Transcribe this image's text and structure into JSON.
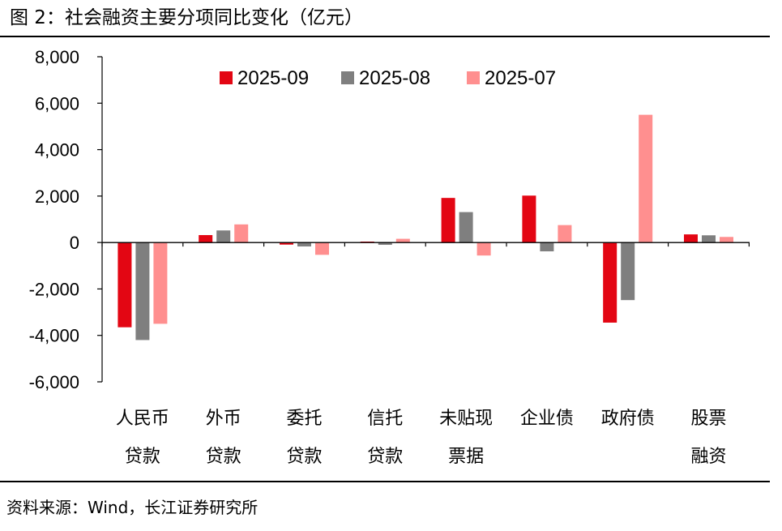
{
  "header": {
    "title": "图 2：社会融资主要分项同比变化（亿元）"
  },
  "footer": {
    "source": "资料来源：Wind，长江证券研究所"
  },
  "colors": {
    "s2025_09": "#e30613",
    "s2025_08": "#7f7f7f",
    "s2025_07": "#ff8f8f"
  },
  "chart_data": {
    "type": "bar",
    "title": "社会融资主要分项同比变化（亿元）",
    "xlabel": "",
    "ylabel": "",
    "ylim": [
      -6000,
      8000
    ],
    "yticks": [
      8000,
      6000,
      4000,
      2000,
      0,
      -2000,
      -4000,
      -6000
    ],
    "ytick_labels": [
      "8,000",
      "6,000",
      "4,000",
      "2,000",
      "0",
      "-2,000",
      "-4,000",
      "-6,000"
    ],
    "categories": [
      [
        "人民币",
        "贷款"
      ],
      [
        "外币",
        "贷款"
      ],
      [
        "委托",
        "贷款"
      ],
      [
        "信托",
        "贷款"
      ],
      [
        "未贴现",
        "票据"
      ],
      [
        "企业债"
      ],
      [
        "政府债"
      ],
      [
        "股票",
        "融资"
      ]
    ],
    "legend_position": "top",
    "series": [
      {
        "name": "2025-09",
        "color": "#e30613",
        "values": [
          -3650,
          320,
          -90,
          40,
          1920,
          2020,
          -3450,
          350
        ]
      },
      {
        "name": "2025-08",
        "color": "#7f7f7f",
        "values": [
          -4200,
          520,
          -170,
          -100,
          1310,
          -380,
          -2480,
          310
        ]
      },
      {
        "name": "2025-07",
        "color": "#ff8f8f",
        "values": [
          -3500,
          780,
          -530,
          160,
          -560,
          750,
          5500,
          240
        ]
      }
    ]
  }
}
